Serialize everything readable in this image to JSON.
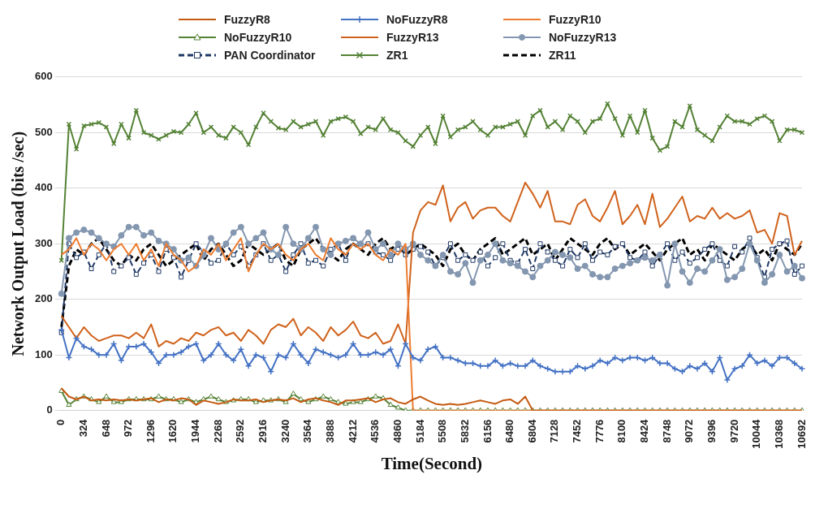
{
  "chart_data": {
    "type": "line",
    "xlabel": "Time(Second)",
    "ylabel": "Network Output Load (bits /sec)",
    "categories": [
      "0",
      null,
      null,
      "324",
      null,
      null,
      "648",
      null,
      null,
      "972",
      null,
      null,
      "1296",
      null,
      null,
      "1620",
      null,
      null,
      "1944",
      null,
      null,
      "2268",
      null,
      null,
      "2592",
      null,
      null,
      "2916",
      null,
      null,
      "3240",
      null,
      null,
      "3564",
      null,
      null,
      "3888",
      null,
      null,
      "4212",
      null,
      null,
      "4536",
      null,
      null,
      "4860",
      null,
      null,
      "5184",
      null,
      null,
      "5508",
      null,
      null,
      "5832",
      null,
      null,
      "6156",
      null,
      null,
      "6480",
      null,
      null,
      "6804",
      null,
      null,
      "7128",
      null,
      null,
      "7452",
      null,
      null,
      "7776",
      null,
      null,
      "8100",
      null,
      null,
      "8424",
      null,
      null,
      "8748",
      null,
      null,
      "9072",
      null,
      null,
      "9396",
      null,
      null,
      "9720",
      null,
      null,
      "10044",
      null,
      null,
      "10368",
      null,
      null,
      "10692"
    ],
    "ylim": [
      0,
      600
    ],
    "yticks": [
      0,
      100,
      200,
      300,
      400,
      500,
      600
    ],
    "grid": "y",
    "legend": "top",
    "series": [
      {
        "name": "FuzzyR8",
        "color": "#c55a11",
        "marker": "none",
        "line_style": "solid",
        "values": [
          40,
          25,
          20,
          25,
          18,
          20,
          18,
          20,
          18,
          20,
          18,
          20,
          22,
          15,
          20,
          18,
          22,
          20,
          10,
          18,
          15,
          12,
          15,
          20,
          18,
          18,
          20,
          15,
          18,
          20,
          18,
          22,
          15,
          20,
          22,
          18,
          15,
          10,
          18,
          18,
          20,
          22,
          15,
          20,
          22,
          15,
          12,
          20,
          25,
          18,
          12,
          10,
          12,
          10,
          12,
          15,
          18,
          15,
          12,
          18,
          20,
          12,
          25,
          0,
          0,
          0,
          0,
          0,
          0,
          0,
          0,
          0,
          0,
          0,
          0,
          0,
          0,
          0,
          0,
          0,
          0,
          0,
          0,
          0,
          0,
          0,
          0,
          0,
          0,
          0,
          0,
          0,
          0,
          0,
          0,
          0,
          0,
          0,
          0,
          0
        ]
      },
      {
        "name": "NoFuzzyR8",
        "color": "#4472c4",
        "marker": "cross",
        "line_style": "solid",
        "values": [
          145,
          95,
          130,
          115,
          110,
          100,
          100,
          120,
          90,
          115,
          115,
          120,
          105,
          85,
          100,
          100,
          105,
          115,
          120,
          90,
          100,
          120,
          100,
          90,
          110,
          80,
          100,
          95,
          70,
          100,
          95,
          120,
          100,
          85,
          110,
          105,
          100,
          95,
          100,
          120,
          100,
          100,
          105,
          100,
          110,
          80,
          120,
          95,
          90,
          110,
          115,
          95,
          95,
          90,
          85,
          85,
          80,
          80,
          90,
          80,
          85,
          80,
          80,
          90,
          80,
          75,
          70,
          70,
          70,
          80,
          75,
          80,
          90,
          85,
          95,
          90,
          95,
          95,
          90,
          95,
          85,
          85,
          75,
          70,
          80,
          75,
          85,
          70,
          95,
          55,
          75,
          80,
          100,
          85,
          90,
          80,
          95,
          95,
          85,
          75
        ]
      },
      {
        "name": "FuzzyR10",
        "color": "#ed7d31",
        "marker": "none",
        "line_style": "solid",
        "values": [
          280,
          290,
          310,
          280,
          300,
          290,
          270,
          290,
          300,
          280,
          300,
          270,
          290,
          260,
          300,
          280,
          270,
          250,
          260,
          290,
          280,
          300,
          270,
          290,
          310,
          250,
          280,
          300,
          290,
          300,
          280,
          270,
          290,
          300,
          280,
          270,
          310,
          290,
          280,
          300,
          290,
          300,
          280,
          270,
          290,
          280,
          300,
          0,
          0,
          0,
          0,
          0,
          0,
          0,
          0,
          0,
          0,
          0,
          0,
          0,
          0,
          0,
          0,
          0,
          0,
          0,
          0,
          0,
          0,
          0,
          0,
          0,
          0,
          0,
          0,
          0,
          0,
          0,
          0,
          0,
          0,
          0,
          0,
          0,
          0,
          0,
          0,
          0,
          0,
          0,
          0,
          0,
          0,
          0,
          0,
          0,
          0,
          0,
          0,
          0
        ]
      },
      {
        "name": "NoFuzzyR10",
        "color": "#548235",
        "marker": "triangle",
        "line_style": "solid",
        "values": [
          35,
          10,
          20,
          25,
          20,
          15,
          25,
          15,
          15,
          20,
          20,
          20,
          20,
          25,
          20,
          20,
          15,
          20,
          15,
          20,
          25,
          20,
          15,
          18,
          20,
          20,
          15,
          18,
          18,
          20,
          15,
          30,
          20,
          15,
          20,
          25,
          20,
          15,
          12,
          15,
          15,
          20,
          25,
          22,
          10,
          5,
          0,
          0,
          0,
          0,
          0,
          0,
          0,
          0,
          0,
          0,
          0,
          0,
          0,
          0,
          0,
          0,
          0,
          0,
          0,
          0,
          0,
          0,
          0,
          0,
          0,
          0,
          0,
          0,
          0,
          0,
          0,
          0,
          0,
          0,
          0,
          0,
          0,
          0,
          0,
          0,
          0,
          0,
          0,
          0,
          0,
          0,
          0,
          0,
          0,
          0,
          0,
          0,
          0,
          0
        ]
      },
      {
        "name": "FuzzyR13",
        "color": "#d0621c",
        "marker": "none",
        "line_style": "solid",
        "values": [
          170,
          150,
          130,
          150,
          135,
          125,
          130,
          135,
          135,
          130,
          140,
          130,
          155,
          115,
          125,
          120,
          130,
          125,
          140,
          135,
          145,
          150,
          135,
          140,
          125,
          145,
          135,
          120,
          145,
          155,
          150,
          165,
          135,
          150,
          140,
          125,
          150,
          135,
          145,
          160,
          135,
          130,
          140,
          120,
          125,
          155,
          120,
          320,
          360,
          375,
          370,
          405,
          340,
          365,
          375,
          345,
          360,
          365,
          365,
          350,
          340,
          375,
          410,
          390,
          365,
          395,
          340,
          340,
          335,
          370,
          380,
          350,
          340,
          365,
          395,
          335,
          350,
          370,
          335,
          390,
          330,
          345,
          365,
          385,
          340,
          350,
          345,
          365,
          345,
          355,
          345,
          350,
          360,
          320,
          325,
          300,
          355,
          350,
          280,
          305
        ]
      },
      {
        "name": "NoFuzzyR13",
        "color": "#8497b0",
        "marker": "circle",
        "line_style": "solid",
        "values": [
          210,
          310,
          320,
          325,
          320,
          310,
          300,
          295,
          315,
          330,
          330,
          315,
          320,
          305,
          300,
          290,
          270,
          275,
          260,
          280,
          310,
          290,
          300,
          320,
          330,
          300,
          310,
          320,
          290,
          280,
          330,
          300,
          290,
          310,
          330,
          290,
          280,
          300,
          305,
          310,
          300,
          320,
          290,
          300,
          280,
          300,
          290,
          300,
          280,
          270,
          260,
          280,
          250,
          245,
          265,
          230,
          270,
          280,
          300,
          270,
          265,
          260,
          250,
          240,
          260,
          270,
          285,
          280,
          275,
          255,
          260,
          245,
          240,
          240,
          255,
          260,
          265,
          270,
          275,
          270,
          280,
          225,
          300,
          250,
          230,
          255,
          250,
          270,
          290,
          235,
          240,
          255,
          300,
          270,
          230,
          245,
          280,
          250,
          260,
          238
        ]
      },
      {
        "name": "PAN Coordinator",
        "color": "#1f3864",
        "marker": "square",
        "line_style": "dashed",
        "values": [
          140,
          300,
          275,
          285,
          255,
          280,
          300,
          250,
          260,
          275,
          245,
          265,
          280,
          250,
          290,
          275,
          240,
          270,
          300,
          285,
          265,
          270,
          300,
          280,
          295,
          260,
          280,
          300,
          270,
          280,
          250,
          280,
          300,
          265,
          270,
          260,
          290,
          300,
          270,
          310,
          295,
          300,
          285,
          280,
          270,
          290,
          280,
          290,
          295,
          285,
          260,
          275,
          300,
          270,
          280,
          270,
          285,
          260,
          275,
          300,
          270,
          265,
          290,
          255,
          300,
          285,
          270,
          260,
          290,
          275,
          300,
          270,
          285,
          280,
          295,
          300,
          275,
          270,
          285,
          260,
          280,
          300,
          270,
          285,
          265,
          275,
          290,
          300,
          270,
          260,
          295,
          285,
          310,
          275,
          240,
          290,
          300,
          305,
          245,
          260
        ]
      },
      {
        "name": "ZR1",
        "color": "#548235",
        "marker": "x",
        "line_style": "solid",
        "values": [
          270,
          515,
          470,
          512,
          515,
          518,
          510,
          480,
          515,
          490,
          540,
          500,
          495,
          488,
          495,
          502,
          500,
          515,
          535,
          500,
          510,
          495,
          490,
          510,
          500,
          478,
          510,
          535,
          520,
          508,
          505,
          520,
          510,
          515,
          520,
          495,
          520,
          525,
          528,
          520,
          498,
          510,
          505,
          525,
          505,
          500,
          485,
          475,
          495,
          510,
          480,
          530,
          492,
          505,
          510,
          520,
          505,
          495,
          510,
          510,
          515,
          520,
          495,
          530,
          540,
          510,
          520,
          505,
          530,
          520,
          500,
          520,
          525,
          552,
          525,
          495,
          530,
          500,
          540,
          490,
          468,
          475,
          520,
          510,
          548,
          505,
          495,
          485,
          510,
          530,
          520,
          520,
          515,
          525,
          530,
          520,
          485,
          505,
          505,
          500
        ]
      },
      {
        "name": "ZR11",
        "color": "#000000",
        "marker": "none",
        "line_style": "dashed",
        "values": [
          150,
          260,
          290,
          280,
          300,
          310,
          290,
          270,
          260,
          280,
          270,
          290,
          300,
          280,
          260,
          270,
          280,
          290,
          300,
          270,
          290,
          300,
          280,
          260,
          270,
          300,
          290,
          280,
          290,
          300,
          270,
          260,
          290,
          300,
          310,
          290,
          280,
          270,
          290,
          300,
          290,
          280,
          300,
          310,
          290,
          300,
          280,
          290,
          300,
          290,
          280,
          260,
          290,
          300,
          280,
          270,
          290,
          300,
          310,
          280,
          290,
          300,
          310,
          280,
          290,
          300,
          270,
          290,
          310,
          300,
          290,
          280,
          300,
          310,
          290,
          300,
          280,
          290,
          300,
          285,
          270,
          290,
          300,
          310,
          280,
          290,
          270,
          300,
          290,
          280,
          270,
          290,
          300,
          280,
          290,
          270,
          300,
          290,
          280,
          300
        ]
      }
    ]
  }
}
